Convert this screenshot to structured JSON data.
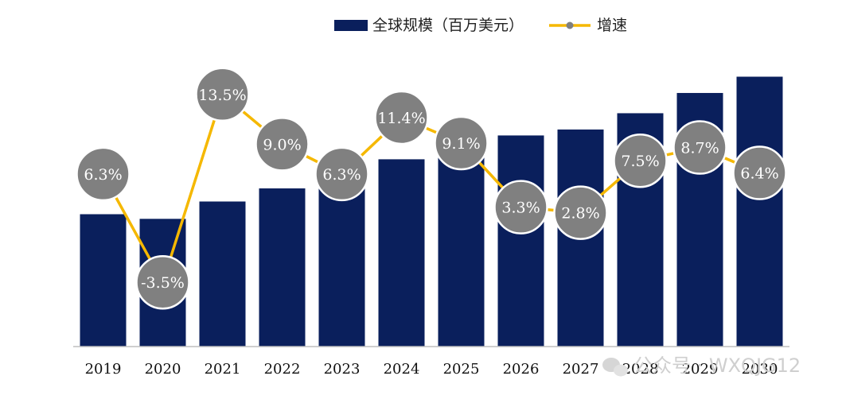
{
  "chart_data": {
    "type": "bar",
    "categories": [
      "2019",
      "2020",
      "2021",
      "2022",
      "2023",
      "2024",
      "2025",
      "2026",
      "2027",
      "2028",
      "2029",
      "2030"
    ],
    "series": [
      {
        "name": "全球规模（百万美元）",
        "kind": "bar",
        "values": [
          100,
          96.5,
          109.6,
          119.5,
          127,
          141.5,
          154.4,
          159.5,
          164,
          176.3,
          191.6,
          203.9
        ]
      },
      {
        "name": "增速",
        "kind": "line",
        "values": [
          6.3,
          -3.5,
          13.5,
          9.0,
          6.3,
          11.4,
          9.1,
          3.3,
          2.8,
          7.5,
          8.7,
          6.4
        ]
      }
    ],
    "growth_labels": [
      "6.3%",
      "-3.5%",
      "13.5%",
      "9.0%",
      "6.3%",
      "11.4%",
      "9.1%",
      "3.3%",
      "2.8%",
      "7.5%",
      "8.7%",
      "6.4%"
    ],
    "title": "",
    "xlabel": "",
    "ylabel": "",
    "bar_ylim": [
      0,
      215
    ],
    "line_ylim": [
      -6,
      16
    ],
    "grid": false,
    "legend_position": "top-center",
    "colors": {
      "bar": "#0a1f5c",
      "line": "#f5b800",
      "bubble": "#808080",
      "bubble_stroke": "#ffffff",
      "axis": "#bfbfbf"
    }
  },
  "legend": {
    "bar_label": "全球规模（百万美元）",
    "line_label": "增速"
  },
  "watermark": {
    "text": "公众号 · WXQJG12",
    "icon": "wechat-icon"
  }
}
